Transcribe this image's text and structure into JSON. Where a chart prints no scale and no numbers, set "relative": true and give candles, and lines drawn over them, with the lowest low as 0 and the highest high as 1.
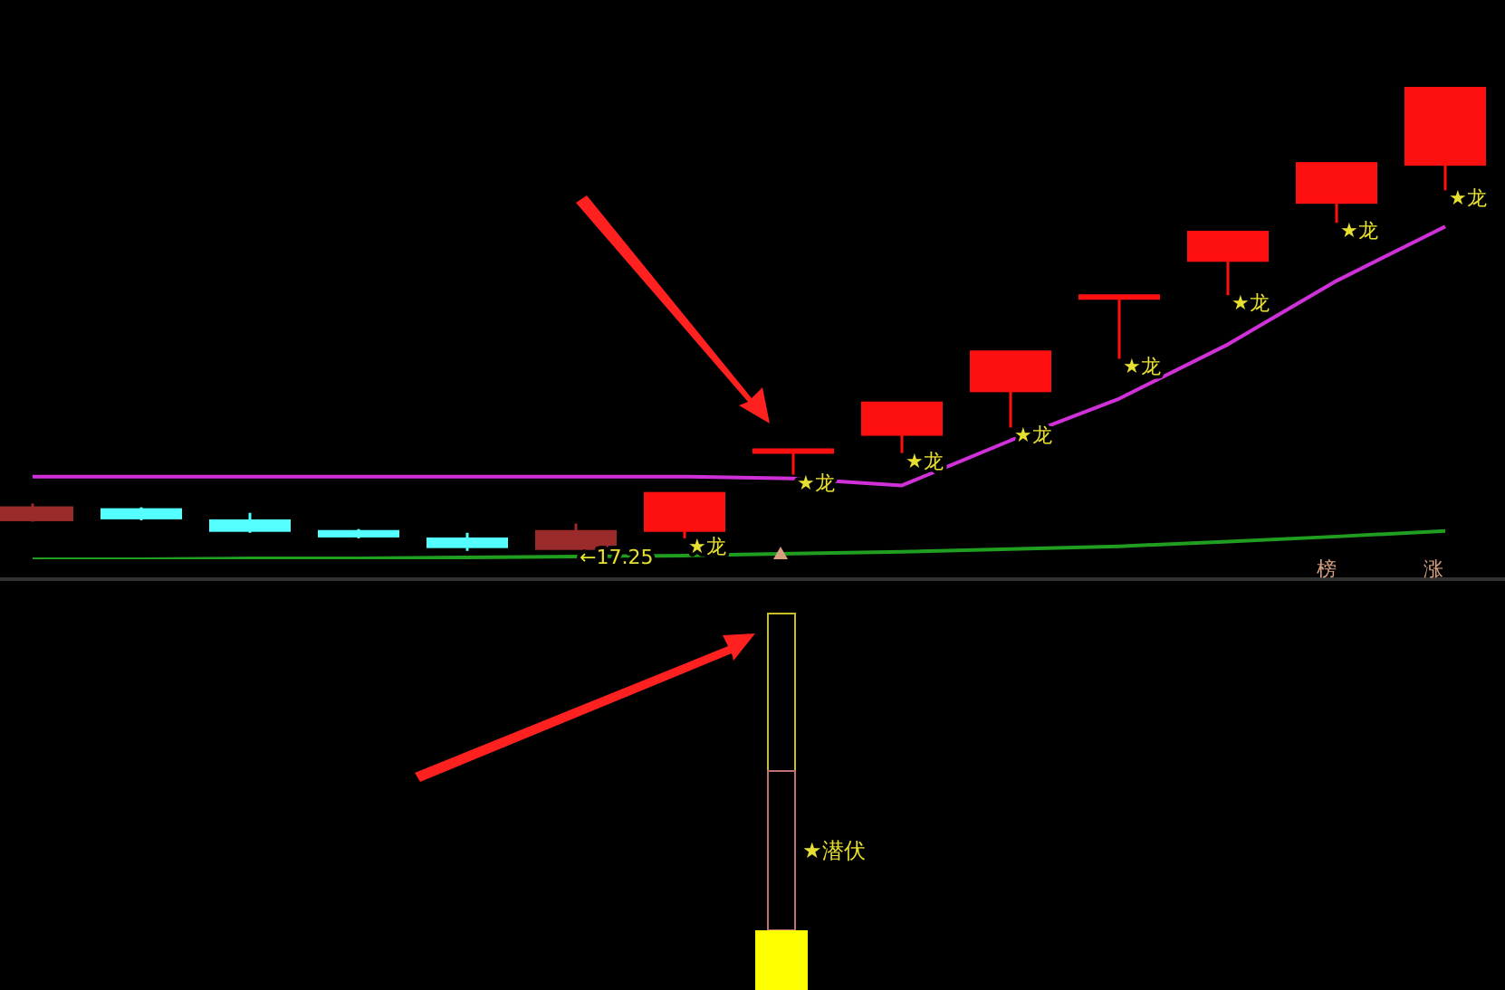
{
  "chart_data": {
    "type": "candlestick",
    "relative": true,
    "categories": [
      null,
      null,
      null,
      null,
      null,
      null,
      null,
      null,
      null,
      null,
      null,
      null,
      null,
      null
    ],
    "ohlc": [
      [
        0.066,
        0.102,
        0.063,
        0.094
      ],
      [
        0.09,
        0.094,
        0.066,
        0.07
      ],
      [
        0.066,
        0.082,
        0.039,
        0.043
      ],
      [
        0.043,
        0.047,
        0.027,
        0.031
      ],
      [
        0.027,
        0.039,
        0,
        0.008
      ],
      [
        0.004,
        0.059,
        0.004,
        0.043
      ],
      [
        0.043,
        0.125,
        0.027,
        0.125
      ],
      [
        0.215,
        0.219,
        0.164,
        0.219
      ],
      [
        0.25,
        0.32,
        0.211,
        0.32
      ],
      [
        0.344,
        0.43,
        0.266,
        0.43
      ],
      [
        0.547,
        0.551,
        0.414,
        0.551
      ],
      [
        0.625,
        0.688,
        0.551,
        0.688
      ],
      [
        0.75,
        0.836,
        0.707,
        0.836
      ],
      [
        0.832,
        1,
        0.777,
        1
      ]
    ],
    "colors": [
      "#9b2a2a",
      "#54ffff",
      "#54ffff",
      "#54ffff",
      "#54ffff",
      "#9b2a2a",
      "#ff1010",
      "#ff1010",
      "#ff1010",
      "#ff1010",
      "#ff1010",
      "#ff1010",
      "#ff1010",
      "#ff1010"
    ],
    "value_labels": [
      null,
      null,
      null,
      null,
      null,
      "←17.25",
      "★龙",
      "★龙",
      "★龙",
      "★龙",
      "★龙",
      "★龙",
      "★龙",
      "★龙"
    ],
    "series": [
      {
        "type": "line",
        "color": "#d030d8",
        "values": [
          0.16,
          0.16,
          0.16,
          0.16,
          0.16,
          0.16,
          0.16,
          0.156,
          0.141,
          0.238,
          0.328,
          0.445,
          0.582,
          0.699
        ]
      },
      {
        "type": "line",
        "color": "#1f9e1f",
        "values": [
          -0.018,
          -0.018,
          -0.016,
          -0.016,
          -0.014,
          -0.012,
          -0.01,
          -0.006,
          -0.002,
          0.004,
          0.01,
          0.02,
          0.031,
          0.043
        ]
      }
    ],
    "annotations": [
      "★潜伏",
      "榜",
      "涨"
    ]
  }
}
